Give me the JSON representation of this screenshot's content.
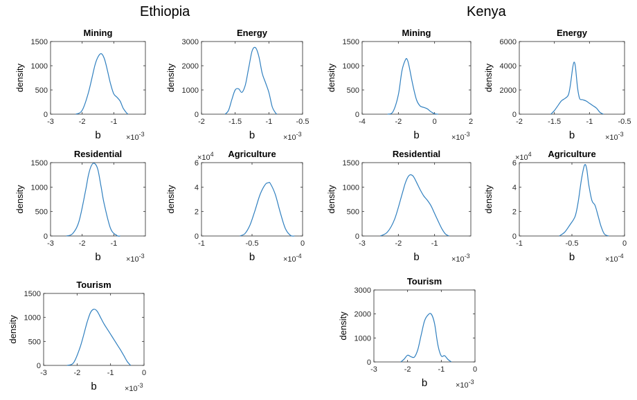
{
  "figure": {
    "countries": [
      "Ethiopia",
      "Kenya"
    ]
  },
  "chart_data": [
    {
      "type": "line",
      "title": "Mining",
      "xlabel": "b",
      "ylabel": "density",
      "xlim": [
        -3,
        0
      ],
      "ylim": [
        0,
        1500
      ],
      "xticks": [
        "-3",
        "-2",
        "-1"
      ],
      "yticks": [
        "0",
        "500",
        "1000",
        "1500"
      ],
      "exponent_base": "×10",
      "exponent_power": "-3",
      "series": [
        {
          "x": [
            -2.2,
            -2.0,
            -1.8,
            -1.6,
            -1.5,
            -1.4,
            -1.3,
            -1.2,
            -1.1,
            -1.0,
            -0.9,
            -0.8,
            -0.7,
            -0.6,
            -0.55
          ],
          "y": [
            0,
            80,
            450,
            1000,
            1180,
            1250,
            1150,
            900,
            620,
            420,
            350,
            270,
            120,
            30,
            0
          ]
        }
      ]
    },
    {
      "type": "line",
      "title": "Energy",
      "xlabel": "b",
      "ylabel": "density",
      "xlim": [
        -2,
        -0.5
      ],
      "ylim": [
        0,
        3000
      ],
      "xticks": [
        "-2",
        "-1.5",
        "-1",
        "-0.5"
      ],
      "yticks": [
        "0",
        "1000",
        "2000",
        "3000"
      ],
      "exponent_base": "×10",
      "exponent_power": "-3",
      "series": [
        {
          "x": [
            -1.65,
            -1.6,
            -1.55,
            -1.5,
            -1.45,
            -1.4,
            -1.35,
            -1.3,
            -1.25,
            -1.2,
            -1.15,
            -1.1,
            -1.05,
            -1.0,
            -0.95,
            -0.9,
            -0.88
          ],
          "y": [
            0,
            150,
            600,
            1000,
            1050,
            900,
            1200,
            1900,
            2600,
            2750,
            2400,
            1700,
            1300,
            900,
            300,
            50,
            0
          ]
        }
      ]
    },
    {
      "type": "line",
      "title": "Residential",
      "xlabel": "b",
      "ylabel": "density",
      "xlim": [
        -3,
        0
      ],
      "ylim": [
        0,
        1500
      ],
      "xticks": [
        "-3",
        "-2",
        "-1"
      ],
      "yticks": [
        "0",
        "500",
        "1000",
        "1500"
      ],
      "exponent_base": "×10",
      "exponent_power": "-3",
      "series": [
        {
          "x": [
            -2.5,
            -2.3,
            -2.1,
            -1.9,
            -1.8,
            -1.7,
            -1.6,
            -1.5,
            -1.4,
            -1.3,
            -1.1,
            -0.9,
            -0.8
          ],
          "y": [
            0,
            50,
            300,
            900,
            1250,
            1450,
            1480,
            1350,
            1000,
            650,
            150,
            10,
            0
          ]
        }
      ]
    },
    {
      "type": "line",
      "title": "Agriculture",
      "xlabel": "b",
      "ylabel": "density",
      "xlim": [
        -1,
        0
      ],
      "ylim": [
        0,
        60000
      ],
      "xticks": [
        "-1",
        "-0.5",
        "0"
      ],
      "yticks": [
        "0",
        "2",
        "4",
        "6"
      ],
      "y_exponent_base": "×10",
      "y_exponent_power": "4",
      "exponent_base": "×10",
      "exponent_power": "-4",
      "series": [
        {
          "x": [
            -0.62,
            -0.57,
            -0.52,
            -0.47,
            -0.42,
            -0.37,
            -0.34,
            -0.32,
            -0.27,
            -0.22,
            -0.17,
            -0.12,
            -0.08
          ],
          "y": [
            0,
            2000,
            9000,
            21000,
            34000,
            42000,
            43500,
            43000,
            34000,
            19000,
            6000,
            500,
            0
          ]
        }
      ]
    },
    {
      "type": "line",
      "title": "Tourism",
      "xlabel": "b",
      "ylabel": "density",
      "xlim": [
        -3,
        0
      ],
      "ylim": [
        0,
        1500
      ],
      "xticks": [
        "-3",
        "-2",
        "-1",
        "0"
      ],
      "yticks": [
        "0",
        "500",
        "1000",
        "1500"
      ],
      "exponent_base": "×10",
      "exponent_power": "-3",
      "series": [
        {
          "x": [
            -2.3,
            -2.1,
            -1.9,
            -1.7,
            -1.6,
            -1.5,
            -1.4,
            -1.3,
            -1.2,
            -1.1,
            -1.0,
            -0.9,
            -0.8,
            -0.7,
            -0.6,
            -0.5,
            -0.4
          ],
          "y": [
            0,
            60,
            400,
            900,
            1100,
            1170,
            1130,
            1000,
            870,
            760,
            650,
            540,
            430,
            320,
            200,
            80,
            0
          ]
        }
      ]
    },
    {
      "type": "line",
      "title": "Mining",
      "xlabel": "b",
      "ylabel": "density",
      "xlim": [
        -4,
        2
      ],
      "ylim": [
        0,
        1500
      ],
      "xticks": [
        "-4",
        "-2",
        "0",
        "2"
      ],
      "yticks": [
        "0",
        "500",
        "1000",
        "1500"
      ],
      "exponent_base": "×10",
      "exponent_power": "-3",
      "series": [
        {
          "x": [
            -2.6,
            -2.3,
            -2.0,
            -1.8,
            -1.6,
            -1.5,
            -1.4,
            -1.2,
            -1.0,
            -0.8,
            -0.6,
            -0.4,
            -0.2,
            0.0,
            0.2
          ],
          "y": [
            0,
            50,
            400,
            900,
            1130,
            1120,
            980,
            600,
            300,
            170,
            140,
            110,
            50,
            10,
            0
          ]
        }
      ]
    },
    {
      "type": "line",
      "title": "Energy",
      "xlabel": "b",
      "ylabel": "density",
      "xlim": [
        -2,
        -0.5
      ],
      "ylim": [
        0,
        6000
      ],
      "xticks": [
        "-2",
        "-1.5",
        "-1",
        "-0.5"
      ],
      "yticks": [
        "0",
        "2000",
        "4000",
        "6000"
      ],
      "exponent_base": "×10",
      "exponent_power": "-3",
      "series": [
        {
          "x": [
            -1.55,
            -1.5,
            -1.45,
            -1.4,
            -1.35,
            -1.3,
            -1.27,
            -1.24,
            -1.22,
            -1.2,
            -1.17,
            -1.14,
            -1.1,
            -1.05,
            -1.0,
            -0.95,
            -0.9,
            -0.85,
            -0.8
          ],
          "y": [
            0,
            300,
            700,
            1100,
            1300,
            1600,
            2500,
            3800,
            4300,
            3900,
            2200,
            1300,
            1200,
            1100,
            900,
            700,
            500,
            150,
            0
          ]
        }
      ]
    },
    {
      "type": "line",
      "title": "Residential",
      "xlabel": "b",
      "ylabel": "density",
      "xlim": [
        -3,
        0
      ],
      "ylim": [
        0,
        1500
      ],
      "xticks": [
        "-3",
        "-2",
        "-1"
      ],
      "yticks": [
        "0",
        "500",
        "1000",
        "1500"
      ],
      "exponent_base": "×10",
      "exponent_power": "-3",
      "series": [
        {
          "x": [
            -2.5,
            -2.3,
            -2.1,
            -1.9,
            -1.8,
            -1.7,
            -1.6,
            -1.5,
            -1.4,
            -1.3,
            -1.2,
            -1.1,
            -1.0,
            -0.9,
            -0.8,
            -0.7,
            -0.6
          ],
          "y": [
            0,
            80,
            350,
            850,
            1100,
            1240,
            1230,
            1100,
            950,
            820,
            730,
            620,
            460,
            300,
            150,
            40,
            0
          ]
        }
      ]
    },
    {
      "type": "line",
      "title": "Agriculture",
      "xlabel": "b",
      "ylabel": "density",
      "xlim": [
        -1,
        0
      ],
      "ylim": [
        0,
        60000
      ],
      "xticks": [
        "-1",
        "-0.5",
        "0"
      ],
      "yticks": [
        "0",
        "2",
        "4",
        "6"
      ],
      "y_exponent_base": "×10",
      "y_exponent_power": "4",
      "exponent_base": "×10",
      "exponent_power": "-4",
      "series": [
        {
          "x": [
            -0.62,
            -0.57,
            -0.52,
            -0.47,
            -0.44,
            -0.41,
            -0.38,
            -0.36,
            -0.34,
            -0.31,
            -0.28,
            -0.25,
            -0.22,
            -0.19,
            -0.15
          ],
          "y": [
            0,
            3000,
            9000,
            16000,
            28000,
            46000,
            58000,
            55000,
            42000,
            29000,
            25000,
            16000,
            7000,
            1500,
            0
          ]
        }
      ]
    },
    {
      "type": "line",
      "title": "Tourism",
      "xlabel": "b",
      "ylabel": "density",
      "xlim": [
        -3,
        0
      ],
      "ylim": [
        0,
        3000
      ],
      "xticks": [
        "-3",
        "-2",
        "-1",
        "0"
      ],
      "yticks": [
        "0",
        "1000",
        "2000",
        "3000"
      ],
      "exponent_base": "×10",
      "exponent_power": "-3",
      "series": [
        {
          "x": [
            -2.2,
            -2.1,
            -2.0,
            -1.9,
            -1.8,
            -1.7,
            -1.6,
            -1.5,
            -1.4,
            -1.3,
            -1.2,
            -1.1,
            -1.0,
            -0.9,
            -0.8,
            -0.7
          ],
          "y": [
            0,
            120,
            280,
            220,
            200,
            500,
            1100,
            1700,
            1950,
            2000,
            1600,
            700,
            250,
            260,
            100,
            0
          ]
        }
      ]
    }
  ],
  "style": {
    "line_color": "#2f7fbf",
    "axis_color": "#262626"
  }
}
